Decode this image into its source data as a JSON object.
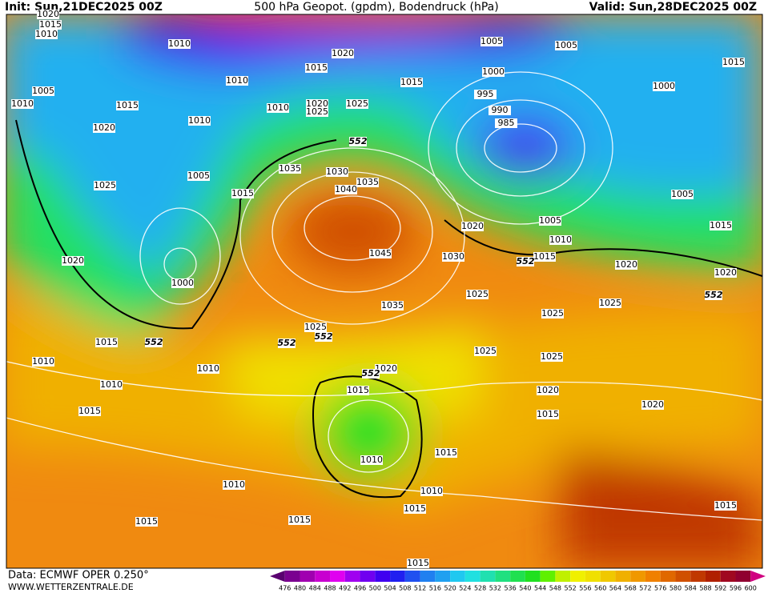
{
  "header": {
    "init": "Init: Sun,21DEC2025 00Z",
    "title": "500 hPa Geopot. (gpdm), Bodendruck (hPa)",
    "valid": "Valid: Sun,28DEC2025 00Z"
  },
  "footer": {
    "source": "Data: ECMWF OPER 0.250°",
    "website": "WWW.WETTERZENTRALE.DE"
  },
  "colorbar": {
    "ticks": [
      476,
      480,
      484,
      488,
      492,
      496,
      500,
      504,
      508,
      512,
      516,
      520,
      524,
      528,
      532,
      536,
      540,
      544,
      548,
      552,
      556,
      560,
      564,
      568,
      572,
      576,
      580,
      584,
      588,
      592,
      596,
      600
    ],
    "colors": [
      "#5a0070",
      "#7a0090",
      "#a000b0",
      "#c800d0",
      "#e000f0",
      "#a000f0",
      "#7000f0",
      "#4000f0",
      "#2020f0",
      "#2050f0",
      "#2080f0",
      "#20a0f0",
      "#20c8f0",
      "#20e0e0",
      "#20e0b0",
      "#20e080",
      "#20e050",
      "#20e020",
      "#60f000",
      "#c0f000",
      "#f0f000",
      "#f0e000",
      "#f0c800",
      "#f0b000",
      "#f09800",
      "#f08000",
      "#e06800",
      "#d05000",
      "#c03800",
      "#b02000",
      "#a00820",
      "#900030",
      "#d00080"
    ]
  },
  "isobar_labels": [
    "1020",
    "1015",
    "1010",
    "1010",
    "1005",
    "1010",
    "1015",
    "1020",
    "1010",
    "1020",
    "1015",
    "1015",
    "1010",
    "1020",
    "1025",
    "1025",
    "1005",
    "1005",
    "1015",
    "1000",
    "995",
    "990",
    "985",
    "1000",
    "1010",
    "1005",
    "1025",
    "1015",
    "1020",
    "1000",
    "1035",
    "1030",
    "1035",
    "1040",
    "1045",
    "1030",
    "1020",
    "1005",
    "1010",
    "1015",
    "1015",
    "1005",
    "1020",
    "1020",
    "1025",
    "1025",
    "1025",
    "1035",
    "1025",
    "1015",
    "1010",
    "1010",
    "1010",
    "1020",
    "1015",
    "1025",
    "1025",
    "1020",
    "1015",
    "1020",
    "1015",
    "1015",
    "1010",
    "1010",
    "1010",
    "1015",
    "1015",
    "1015",
    "1015",
    "1015"
  ],
  "height_labels": [
    "552",
    "552",
    "552",
    "552",
    "552",
    "552",
    "552"
  ]
}
